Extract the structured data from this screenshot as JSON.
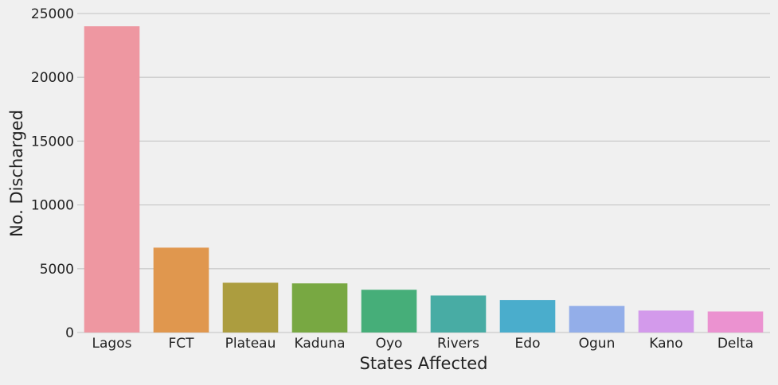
{
  "chart_data": {
    "type": "bar",
    "title": "",
    "xlabel": "States Affected",
    "ylabel": "No. Discharged",
    "categories": [
      "Lagos",
      "FCT",
      "Plateau",
      "Kaduna",
      "Oyo",
      "Rivers",
      "Edo",
      "Ogun",
      "Kano",
      "Delta"
    ],
    "values": [
      24000,
      6650,
      3900,
      3850,
      3350,
      2900,
      2550,
      2080,
      1720,
      1650
    ],
    "colors": [
      "#ee97a1",
      "#e0974e",
      "#ac9d3f",
      "#78a842",
      "#46ae79",
      "#48aca4",
      "#4aadcc",
      "#93aee9",
      "#d39aeb",
      "#eb92d0"
    ],
    "ylim": [
      0,
      25000
    ],
    "yticks": [
      0,
      5000,
      10000,
      15000,
      20000,
      25000
    ],
    "grid": true,
    "background": "#f0f0f0",
    "grid_color": "#cbcbcb"
  }
}
